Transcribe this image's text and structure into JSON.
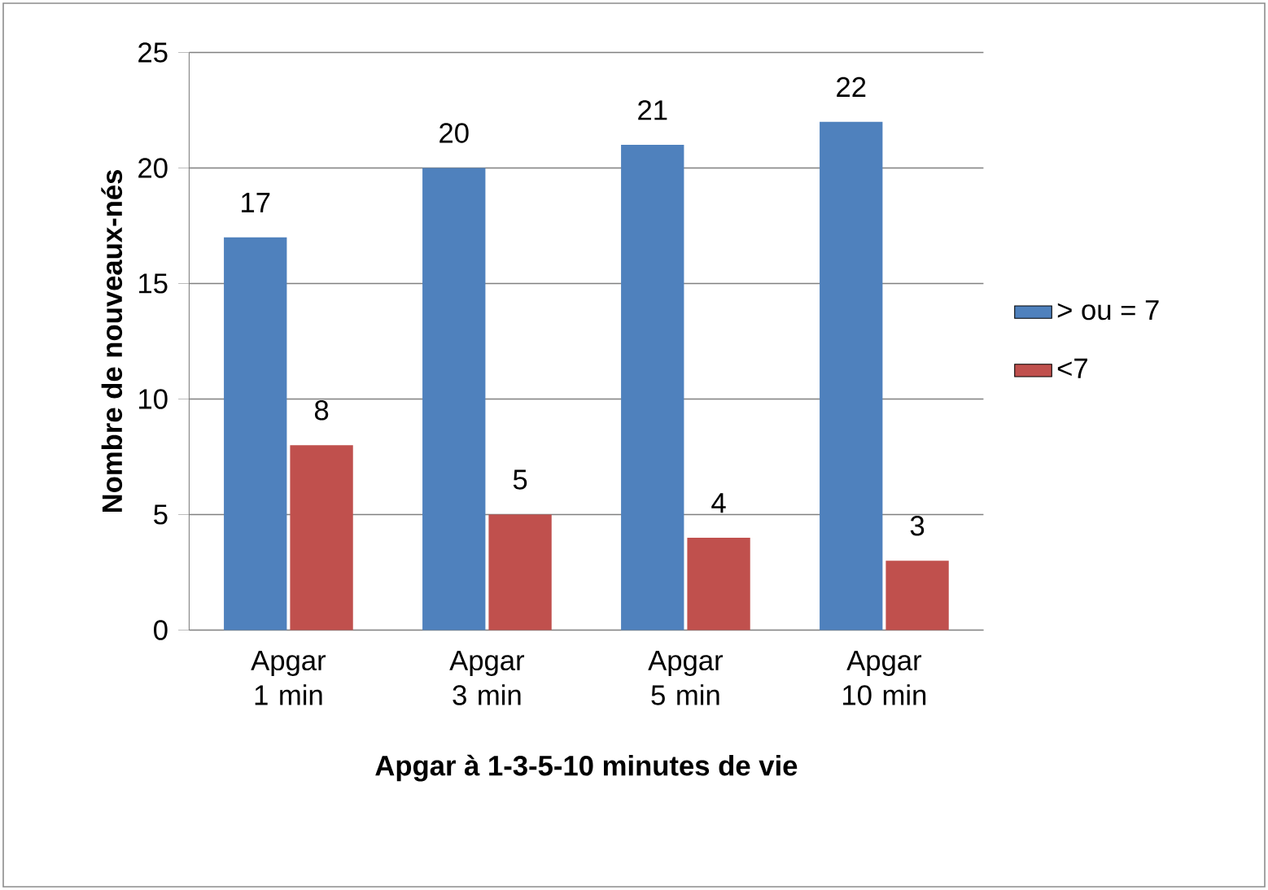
{
  "chart_data": {
    "type": "bar",
    "xlabel": "Apgar à 1-3-5-10 minutes de vie",
    "ylabel": "Nombre de nouveaux-nés",
    "categories": [
      "Apgar 1 min",
      "Apgar 3 min",
      "Apgar 5 min",
      "Apgar 10 min"
    ],
    "series": [
      {
        "name": "> ou = 7",
        "color": "#4f81bd",
        "values": [
          17,
          20,
          21,
          22
        ]
      },
      {
        "name": "<7",
        "color": "#c0504d",
        "values": [
          8,
          5,
          4,
          3
        ]
      }
    ],
    "ylim": [
      0,
      25
    ],
    "yticks": [
      0,
      5,
      10,
      15,
      20,
      25
    ],
    "grid": "y",
    "legend": "right",
    "data_labels": true
  }
}
